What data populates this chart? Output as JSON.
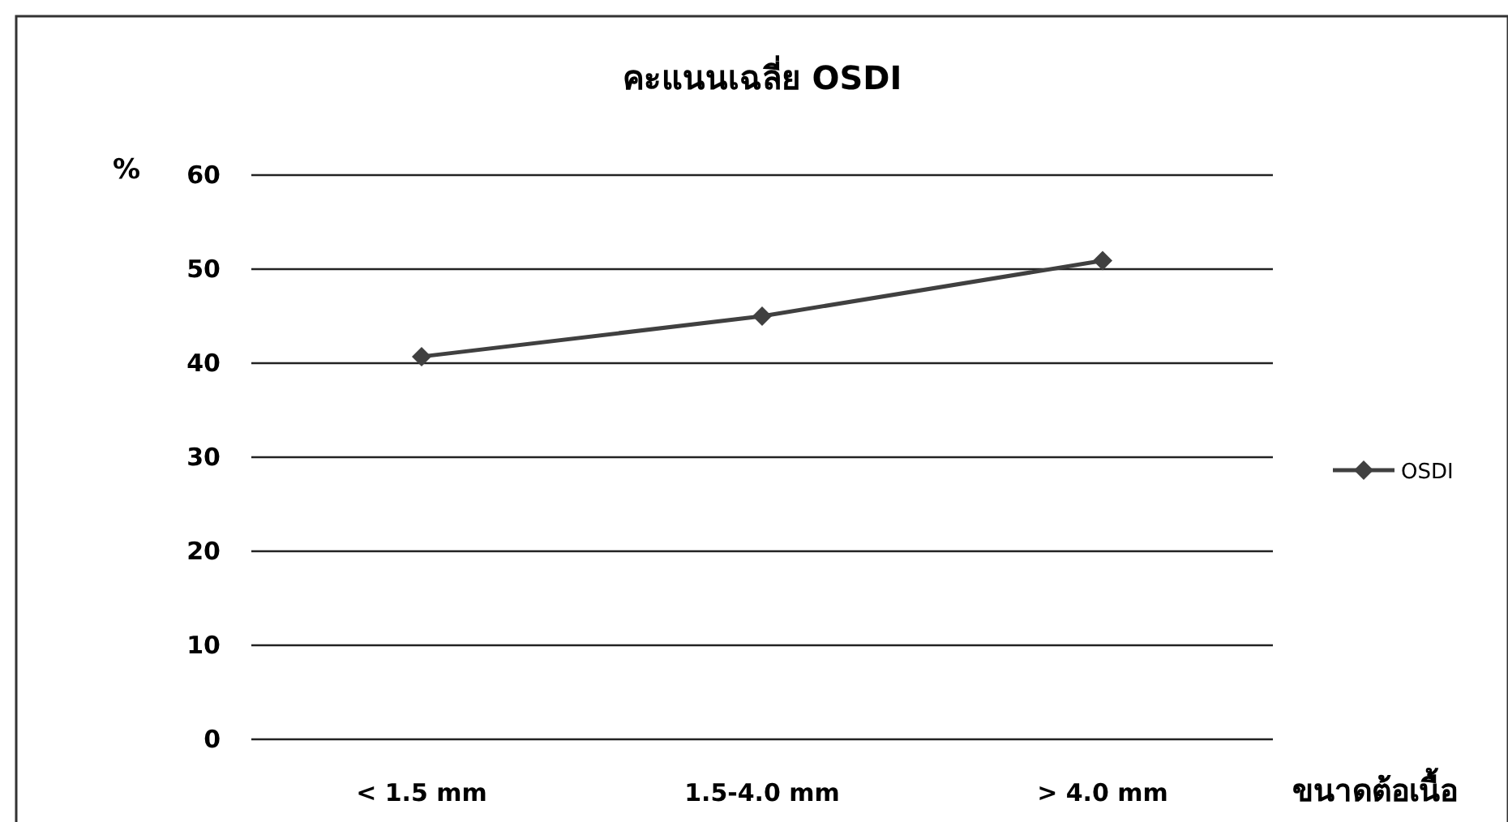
{
  "chart_data": {
    "type": "line",
    "title": "คะแนนเฉลี่ย OSDI",
    "ylabel": "%",
    "xlabel": "ขนาดต้อเนื้อ",
    "categories": [
      "< 1.5  mm",
      "1.5-4.0 mm",
      "> 4.0 mm"
    ],
    "series": [
      {
        "name": "OSDI",
        "color": "#404040",
        "values": [
          40.7,
          45.0,
          50.9
        ]
      }
    ],
    "ylim": [
      0,
      60
    ],
    "yticks": [
      0,
      10,
      20,
      30,
      40,
      50,
      60
    ],
    "grid": "y",
    "legend": "right",
    "marker": "diamond",
    "line_style": "solid"
  }
}
